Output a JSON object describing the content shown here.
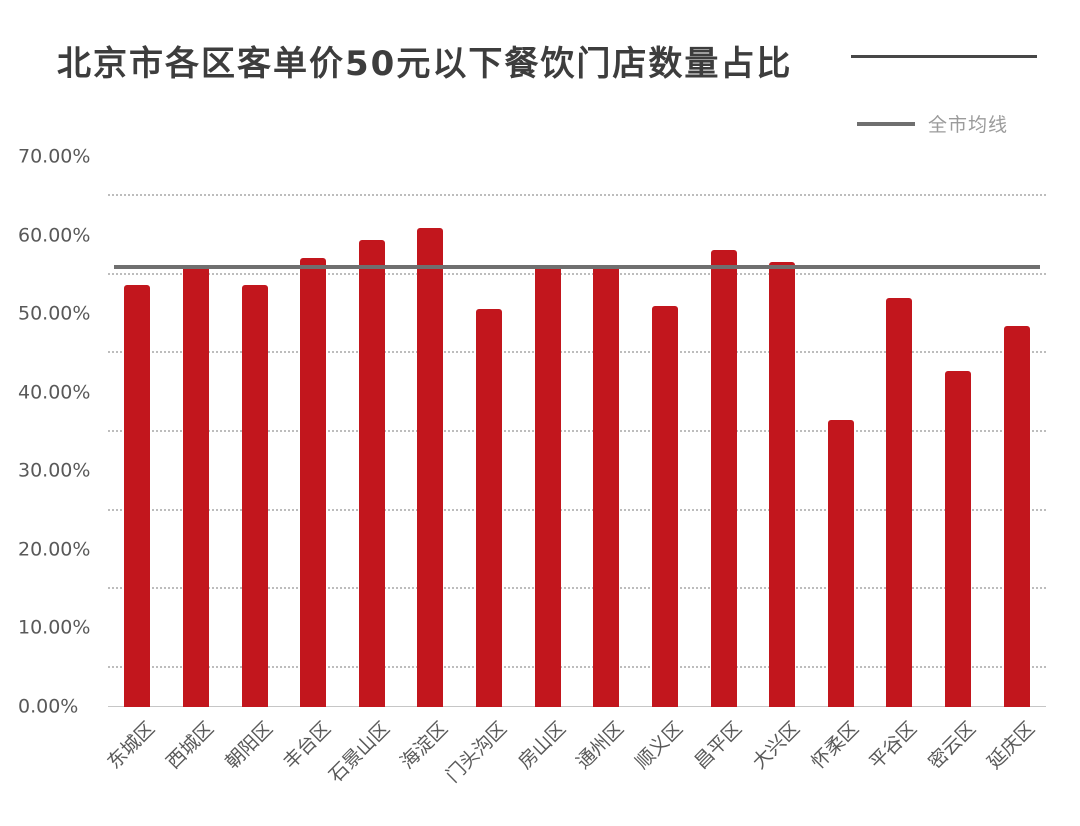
{
  "chart_data": {
    "type": "bar",
    "title": "北京市各区客单价50元以下餐饮门店数量占比",
    "categories": [
      "东城区",
      "西城区",
      "朝阳区",
      "丰台区",
      "石景山区",
      "海淀区",
      "门头沟区",
      "房山区",
      "通州区",
      "顺义区",
      "昌平区",
      "大兴区",
      "怀柔区",
      "平谷区",
      "密云区",
      "延庆区"
    ],
    "values": [
      53.7,
      56.1,
      53.7,
      57.2,
      59.5,
      61.0,
      50.6,
      56.2,
      56.2,
      51.0,
      58.2,
      56.6,
      36.5,
      52.0,
      42.8,
      48.5
    ],
    "value_unit": "%",
    "ylim": [
      0,
      70
    ],
    "y_ticks": [
      {
        "value": 0,
        "label": "0.00%"
      },
      {
        "value": 10,
        "label": "10.00%"
      },
      {
        "value": 20,
        "label": "20.00%"
      },
      {
        "value": 30,
        "label": "30.00%"
      },
      {
        "value": 40,
        "label": "40.00%"
      },
      {
        "value": 50,
        "label": "50.00%"
      },
      {
        "value": 60,
        "label": "60.00%"
      },
      {
        "value": 70,
        "label": "70.00%"
      }
    ],
    "grid_values": [
      5,
      15,
      25,
      35,
      45,
      55,
      65
    ],
    "grid_style": "dotted",
    "xlabel": "",
    "ylabel": "",
    "legend_position": "top-right",
    "average_line": {
      "label": "全市均线",
      "value": 56.0
    },
    "colors": {
      "bar": "#c2161d",
      "average_line": "#6f6f6f",
      "gridline": "#bdbdbd",
      "baseline": "#c6c6c6",
      "axis_text": "#595959",
      "title_text": "#3d3d3d",
      "title_rule": "#474747",
      "legend_text": "#9b9b9b"
    }
  }
}
